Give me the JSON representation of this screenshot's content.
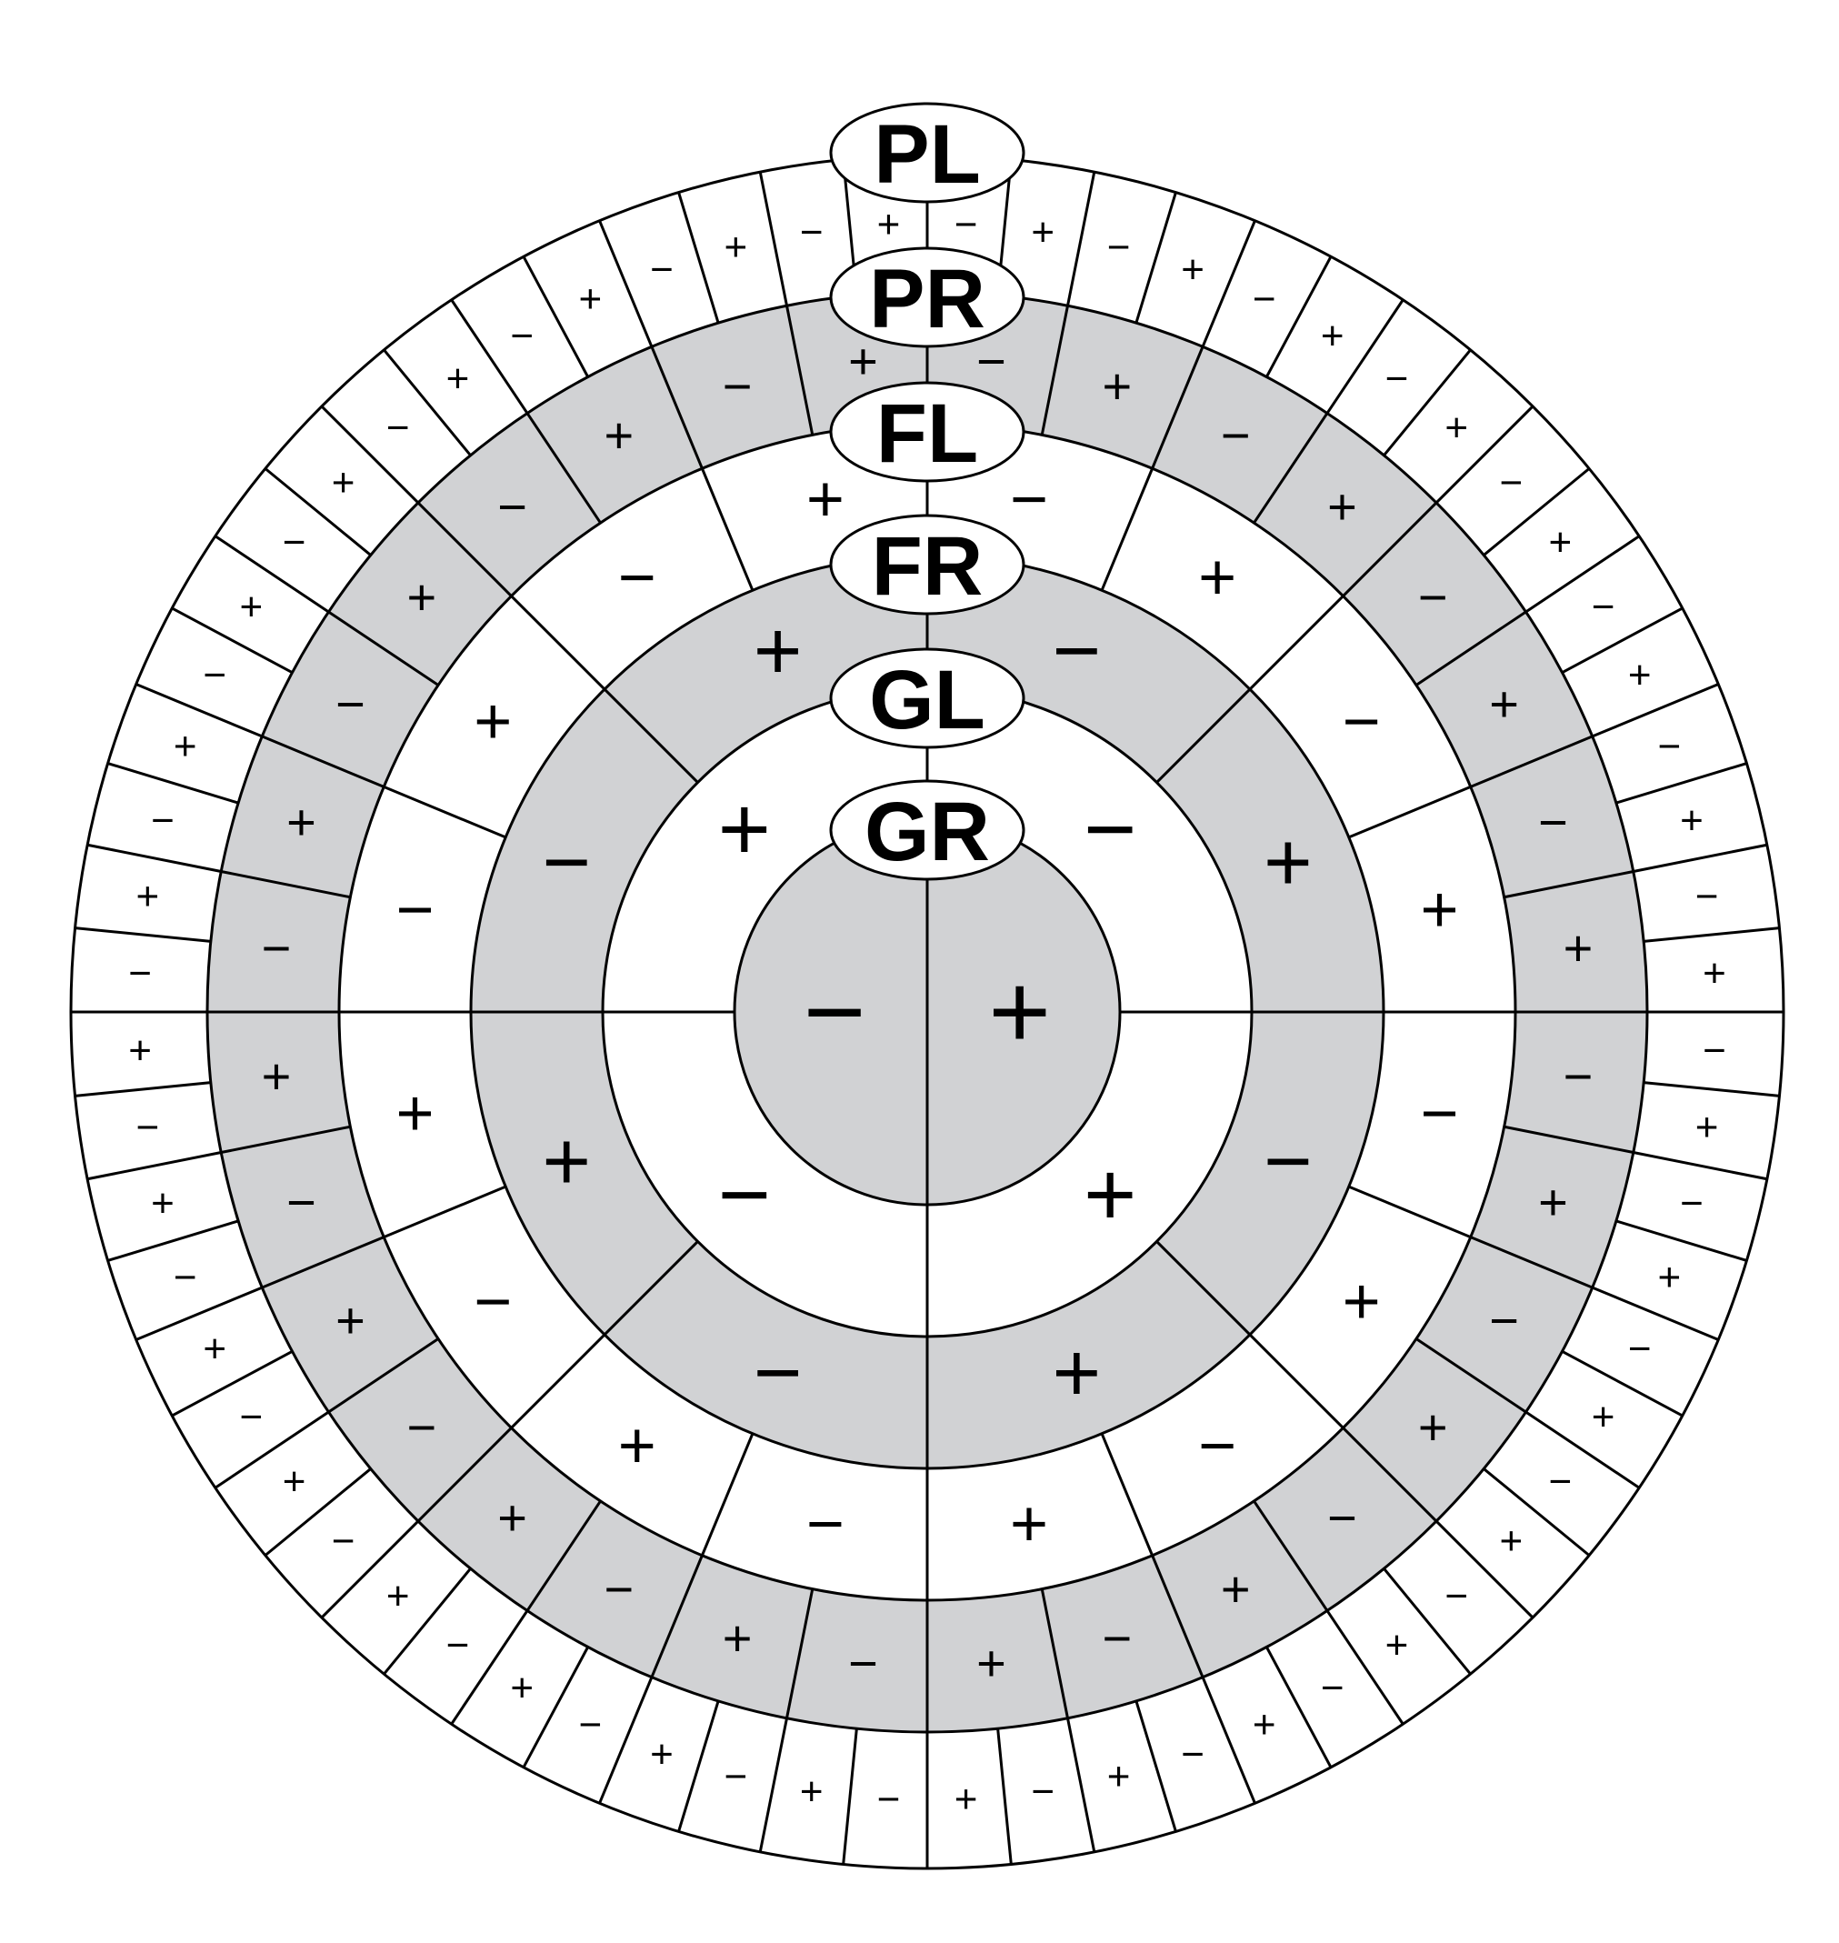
{
  "colors": {
    "stroke": "#000000",
    "shaded": "#d1d2d4",
    "unshaded": "#ffffff"
  },
  "signs": {
    "plus": "+",
    "minus": "−"
  },
  "rings": [
    {
      "label": "GR",
      "sectors": 2,
      "shaded": true,
      "first_sign": "+"
    },
    {
      "label": "GL",
      "sectors": 4,
      "shaded": false,
      "first_sign": "−"
    },
    {
      "label": "FR",
      "sectors": 8,
      "shaded": true,
      "first_sign": "−"
    },
    {
      "label": "FL",
      "sectors": 16,
      "shaded": false,
      "first_sign": "−"
    },
    {
      "label": "PR",
      "sectors": 32,
      "shaded": true,
      "first_sign": "−"
    },
    {
      "label": "PL",
      "sectors": 64,
      "shaded": false,
      "first_sign": "−"
    }
  ]
}
